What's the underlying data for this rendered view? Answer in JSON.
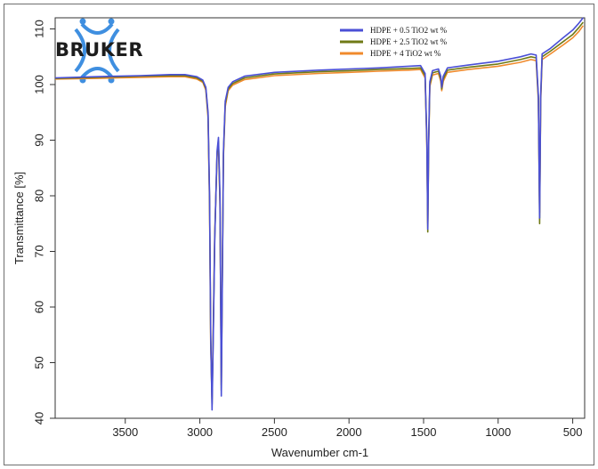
{
  "logo": {
    "text": "BRUKER"
  },
  "colors": {
    "blue": "#4a4fd6",
    "olive": "#6f7a16",
    "orange": "#f08a2c",
    "logo_blue": "#3f8fe0",
    "axis": "#333333"
  },
  "chart_data": {
    "type": "line",
    "xlabel": "Wavenumber cm-1",
    "ylabel": "Transmittance [%]",
    "xlim": [
      3970,
      420
    ],
    "ylim": [
      40,
      112
    ],
    "x_reversed": true,
    "xticks": [
      3500,
      3000,
      2500,
      2000,
      1500,
      1000,
      500
    ],
    "yticks": [
      40,
      50,
      60,
      70,
      80,
      90,
      100,
      110
    ],
    "legend_position": "top-center",
    "grid": false,
    "series": [
      {
        "name": "HDPE + 0.5 TiO2 wt %",
        "color": "#4a4fd6",
        "points": [
          [
            3970,
            101.2
          ],
          [
            3700,
            101.4
          ],
          [
            3400,
            101.6
          ],
          [
            3200,
            101.8
          ],
          [
            3100,
            101.8
          ],
          [
            3020,
            101.4
          ],
          [
            2980,
            100.8
          ],
          [
            2960,
            99.5
          ],
          [
            2945,
            95
          ],
          [
            2935,
            80
          ],
          [
            2927,
            55
          ],
          [
            2918,
            41.5
          ],
          [
            2910,
            55
          ],
          [
            2900,
            72
          ],
          [
            2885,
            88
          ],
          [
            2875,
            90.5
          ],
          [
            2865,
            80
          ],
          [
            2856,
            44
          ],
          [
            2850,
            62
          ],
          [
            2842,
            88
          ],
          [
            2830,
            97
          ],
          [
            2810,
            99.5
          ],
          [
            2780,
            100.5
          ],
          [
            2700,
            101.5
          ],
          [
            2500,
            102.2
          ],
          [
            2200,
            102.6
          ],
          [
            2000,
            102.8
          ],
          [
            1800,
            103
          ],
          [
            1600,
            103.3
          ],
          [
            1520,
            103.4
          ],
          [
            1490,
            102
          ],
          [
            1478,
            90
          ],
          [
            1472,
            74
          ],
          [
            1466,
            90
          ],
          [
            1458,
            100.5
          ],
          [
            1440,
            102.5
          ],
          [
            1400,
            102.8
          ],
          [
            1385,
            101.5
          ],
          [
            1378,
            99.5
          ],
          [
            1368,
            101.5
          ],
          [
            1340,
            103
          ],
          [
            1200,
            103.5
          ],
          [
            1000,
            104.2
          ],
          [
            850,
            105
          ],
          [
            780,
            105.5
          ],
          [
            745,
            105.3
          ],
          [
            730,
            98
          ],
          [
            722,
            76
          ],
          [
            715,
            98
          ],
          [
            705,
            105.5
          ],
          [
            650,
            106.5
          ],
          [
            560,
            108.5
          ],
          [
            500,
            109.8
          ],
          [
            460,
            111
          ],
          [
            430,
            112
          ]
        ]
      },
      {
        "name": "HDPE + 2.5 TiO2  wt %",
        "color": "#6f7a16",
        "points": [
          [
            3970,
            101.1
          ],
          [
            3700,
            101.3
          ],
          [
            3400,
            101.5
          ],
          [
            3200,
            101.6
          ],
          [
            3100,
            101.6
          ],
          [
            3020,
            101.2
          ],
          [
            2980,
            100.6
          ],
          [
            2960,
            99.3
          ],
          [
            2945,
            94.5
          ],
          [
            2935,
            79
          ],
          [
            2927,
            54
          ],
          [
            2918,
            42.5
          ],
          [
            2910,
            56
          ],
          [
            2900,
            72.5
          ],
          [
            2885,
            87.5
          ],
          [
            2875,
            89.8
          ],
          [
            2865,
            79
          ],
          [
            2856,
            45
          ],
          [
            2850,
            63
          ],
          [
            2842,
            87.5
          ],
          [
            2830,
            96.5
          ],
          [
            2810,
            99.2
          ],
          [
            2780,
            100.2
          ],
          [
            2700,
            101.2
          ],
          [
            2500,
            101.9
          ],
          [
            2200,
            102.3
          ],
          [
            2000,
            102.5
          ],
          [
            1800,
            102.7
          ],
          [
            1600,
            102.9
          ],
          [
            1520,
            103
          ],
          [
            1490,
            101.6
          ],
          [
            1478,
            89.5
          ],
          [
            1472,
            73.5
          ],
          [
            1466,
            89.5
          ],
          [
            1458,
            100
          ],
          [
            1440,
            102.1
          ],
          [
            1400,
            102.4
          ],
          [
            1385,
            101
          ],
          [
            1378,
            99.2
          ],
          [
            1368,
            101
          ],
          [
            1340,
            102.6
          ],
          [
            1200,
            103.1
          ],
          [
            1000,
            103.7
          ],
          [
            850,
            104.5
          ],
          [
            780,
            105
          ],
          [
            745,
            104.8
          ],
          [
            730,
            97.5
          ],
          [
            722,
            75
          ],
          [
            715,
            97.5
          ],
          [
            705,
            105
          ],
          [
            650,
            106
          ],
          [
            560,
            107.8
          ],
          [
            500,
            109
          ],
          [
            460,
            110.2
          ],
          [
            430,
            111.2
          ]
        ]
      },
      {
        "name": "HDPE + 4  TiO2 wt %",
        "color": "#f08a2c",
        "points": [
          [
            3970,
            101
          ],
          [
            3700,
            101.1
          ],
          [
            3400,
            101.3
          ],
          [
            3200,
            101.4
          ],
          [
            3100,
            101.4
          ],
          [
            3020,
            101
          ],
          [
            2980,
            100.4
          ],
          [
            2960,
            99
          ],
          [
            2945,
            94
          ],
          [
            2935,
            78.5
          ],
          [
            2927,
            53
          ],
          [
            2918,
            43.5
          ],
          [
            2910,
            57
          ],
          [
            2900,
            73
          ],
          [
            2885,
            87
          ],
          [
            2875,
            89.3
          ],
          [
            2865,
            78.5
          ],
          [
            2856,
            46
          ],
          [
            2850,
            64
          ],
          [
            2842,
            87
          ],
          [
            2830,
            96
          ],
          [
            2810,
            98.9
          ],
          [
            2780,
            99.9
          ],
          [
            2700,
            100.9
          ],
          [
            2500,
            101.6
          ],
          [
            2200,
            102
          ],
          [
            2000,
            102.2
          ],
          [
            1800,
            102.4
          ],
          [
            1600,
            102.6
          ],
          [
            1520,
            102.7
          ],
          [
            1490,
            101.2
          ],
          [
            1478,
            89
          ],
          [
            1472,
            75
          ],
          [
            1466,
            89
          ],
          [
            1458,
            99.6
          ],
          [
            1440,
            101.7
          ],
          [
            1400,
            102
          ],
          [
            1385,
            100.6
          ],
          [
            1378,
            98.9
          ],
          [
            1368,
            100.6
          ],
          [
            1340,
            102.2
          ],
          [
            1200,
            102.7
          ],
          [
            1000,
            103.3
          ],
          [
            850,
            104
          ],
          [
            780,
            104.5
          ],
          [
            745,
            104.3
          ],
          [
            730,
            97
          ],
          [
            722,
            77
          ],
          [
            715,
            97
          ],
          [
            705,
            104.5
          ],
          [
            650,
            105.5
          ],
          [
            560,
            107.2
          ],
          [
            500,
            108.4
          ],
          [
            460,
            109.5
          ],
          [
            430,
            110.6
          ]
        ]
      }
    ]
  }
}
